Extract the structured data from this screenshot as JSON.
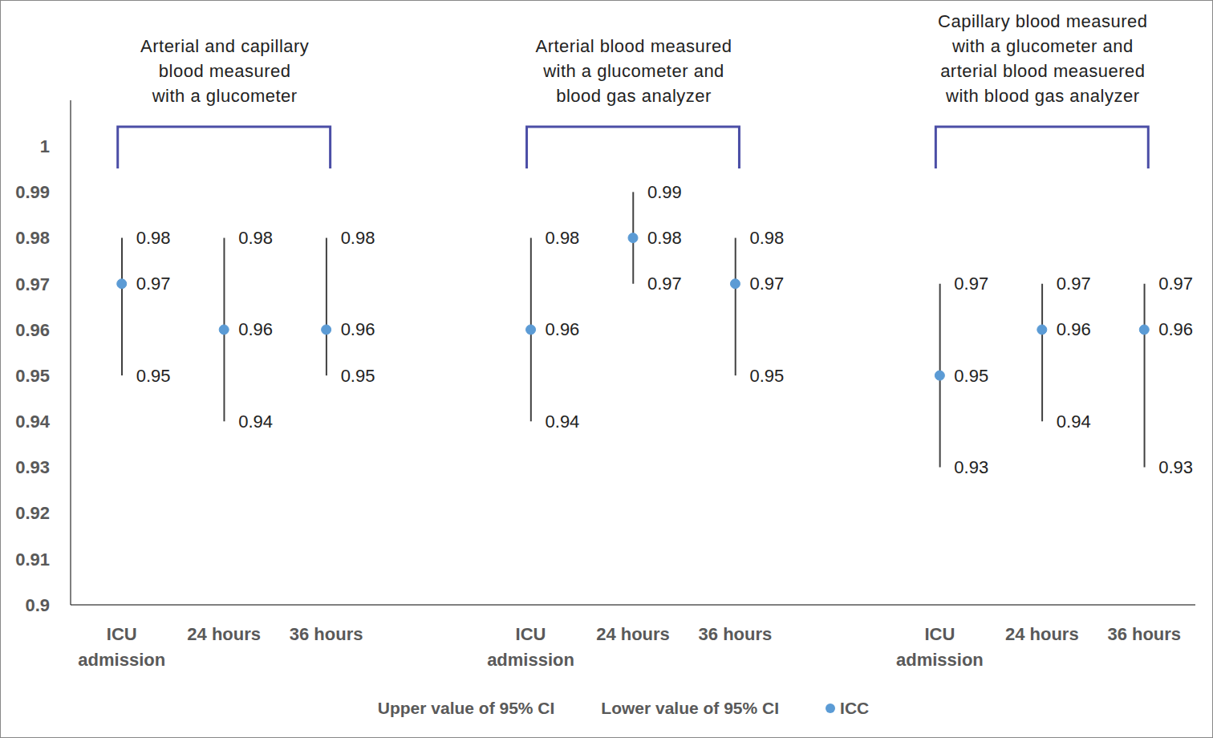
{
  "chart_data": {
    "type": "scatter",
    "categories": [
      "ICU admission",
      "24 hours",
      "36 hours",
      null,
      "ICU admission",
      "24 hours",
      "36 hours",
      null,
      "ICU admission",
      "24 hours",
      "36 hours"
    ],
    "groups": [
      [
        "Arterial and capillary",
        "blood measured",
        "with a glucometer"
      ],
      [
        "Arterial blood measured",
        "with a glucometer and",
        "blood gas analyzer"
      ],
      [
        "Capillary blood measured",
        "with a glucometer and",
        "arterial blood measuered",
        "with blood gas analyzer"
      ]
    ],
    "series": [
      {
        "name": "Upper value of 95% CI",
        "color": "#404040",
        "marker": "none",
        "values": [
          0.98,
          0.98,
          0.98,
          null,
          0.98,
          0.99,
          0.98,
          null,
          0.97,
          0.97,
          0.97
        ]
      },
      {
        "name": "Lower value of 95% CI",
        "color": "#404040",
        "marker": "none",
        "values": [
          0.95,
          0.94,
          0.95,
          null,
          0.94,
          0.97,
          0.95,
          null,
          0.93,
          0.94,
          0.93
        ]
      },
      {
        "name": "ICC",
        "color": "#5b9bd5",
        "marker": "circle",
        "values": [
          0.97,
          0.96,
          0.96,
          null,
          0.96,
          0.98,
          0.97,
          null,
          0.95,
          0.96,
          0.96
        ]
      }
    ],
    "ylim": [
      0.9,
      1.01
    ],
    "yticks": [
      0.9,
      0.91,
      0.92,
      0.93,
      0.94,
      0.95,
      0.96,
      0.97,
      0.98,
      0.99,
      1
    ],
    "grid": false,
    "data_labels": true,
    "legend": "bottom"
  }
}
